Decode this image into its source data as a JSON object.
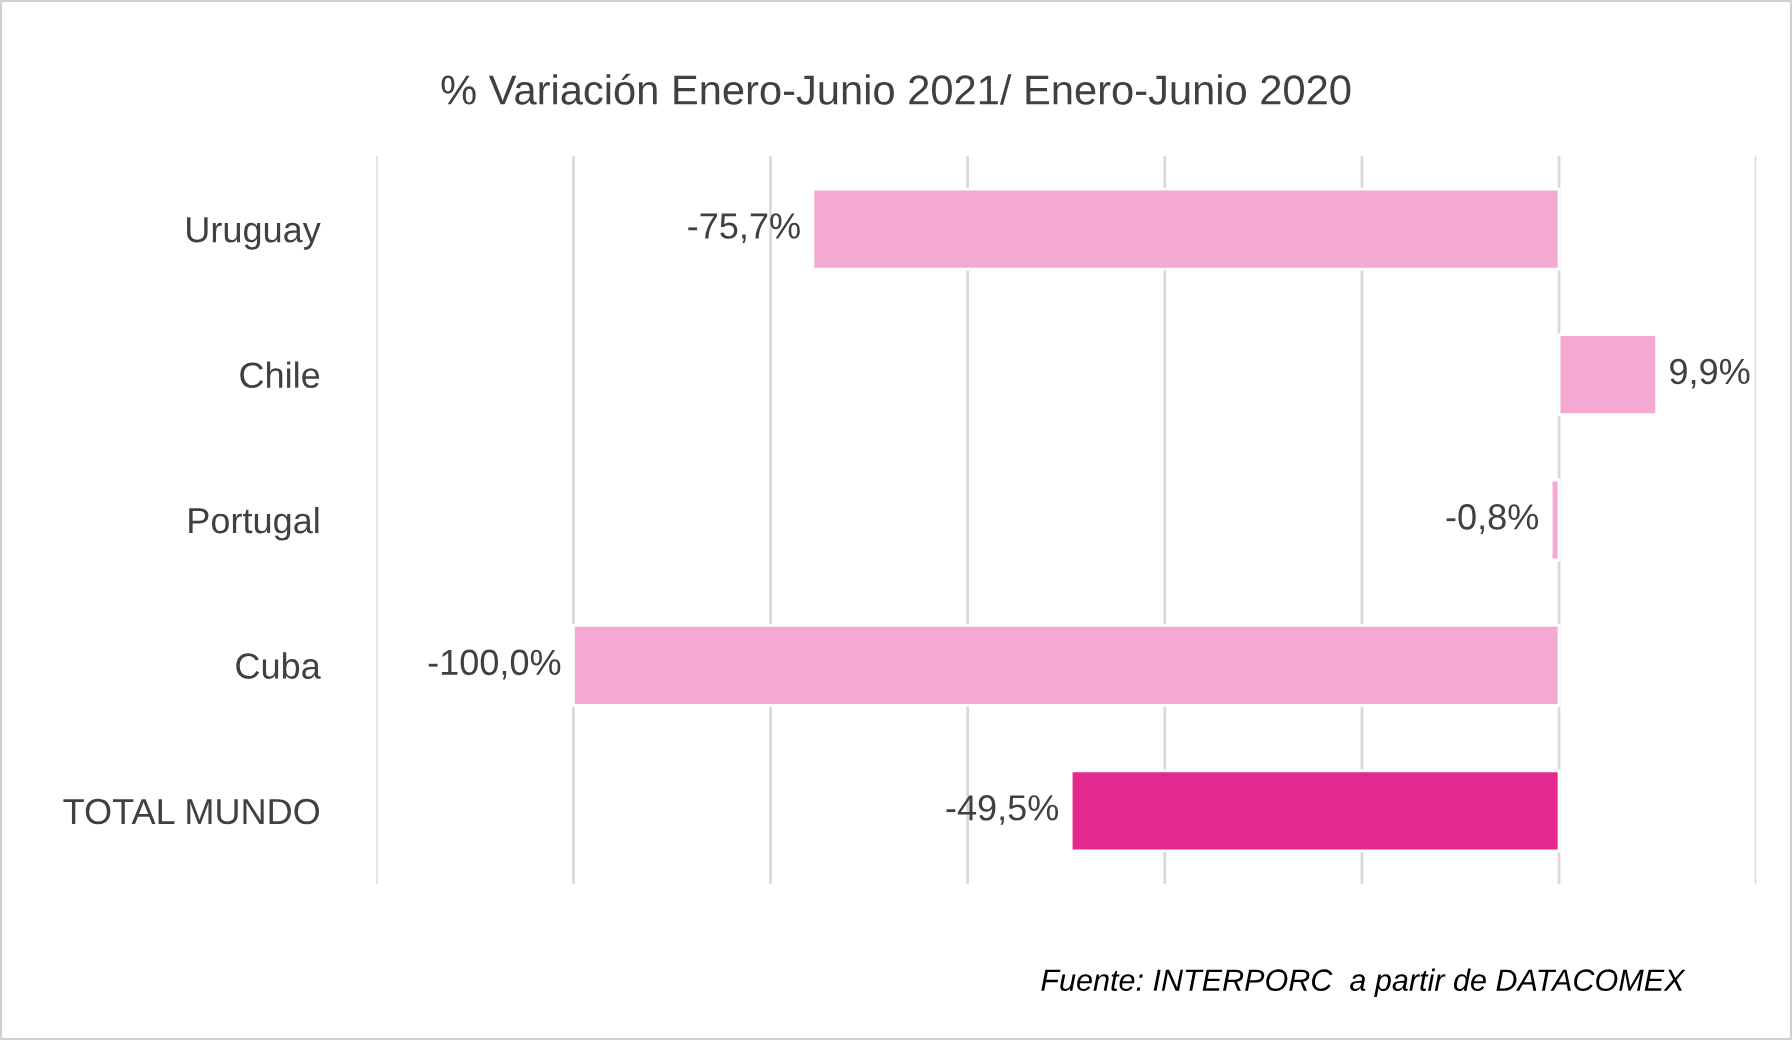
{
  "chart_data": {
    "type": "bar",
    "orientation": "horizontal",
    "title": "% Variación Enero-Junio 2021/ Enero-Junio 2020",
    "categories": [
      "Uruguay",
      "Chile",
      "Portugal",
      "Cuba",
      "TOTAL MUNDO"
    ],
    "values": [
      -75.7,
      9.9,
      -0.8,
      -100.0,
      -49.5
    ],
    "colors": [
      "#f4a9d3",
      "#f4a9d3",
      "#f4a9d3",
      "#f4a9d3",
      "#e3298f"
    ],
    "value_labels": [
      "-75,7%",
      "9,9%",
      "-0,8%",
      "-100,0%",
      "-49,5%"
    ],
    "xlim": [
      -120,
      20
    ],
    "xticks": [
      {
        "value": -120,
        "label": null
      },
      {
        "value": -100,
        "label": null
      },
      {
        "value": -80,
        "label": null
      },
      {
        "value": -60,
        "label": null
      },
      {
        "value": -40,
        "label": null
      },
      {
        "value": -20,
        "label": null
      },
      {
        "value": 0,
        "label": null
      },
      {
        "value": 20,
        "label": null
      }
    ],
    "tick_labels": "y",
    "grid": "x",
    "legend": false,
    "annotations": [
      "Fuente: INTERPORC  a partir de DATACOMEX"
    ]
  }
}
